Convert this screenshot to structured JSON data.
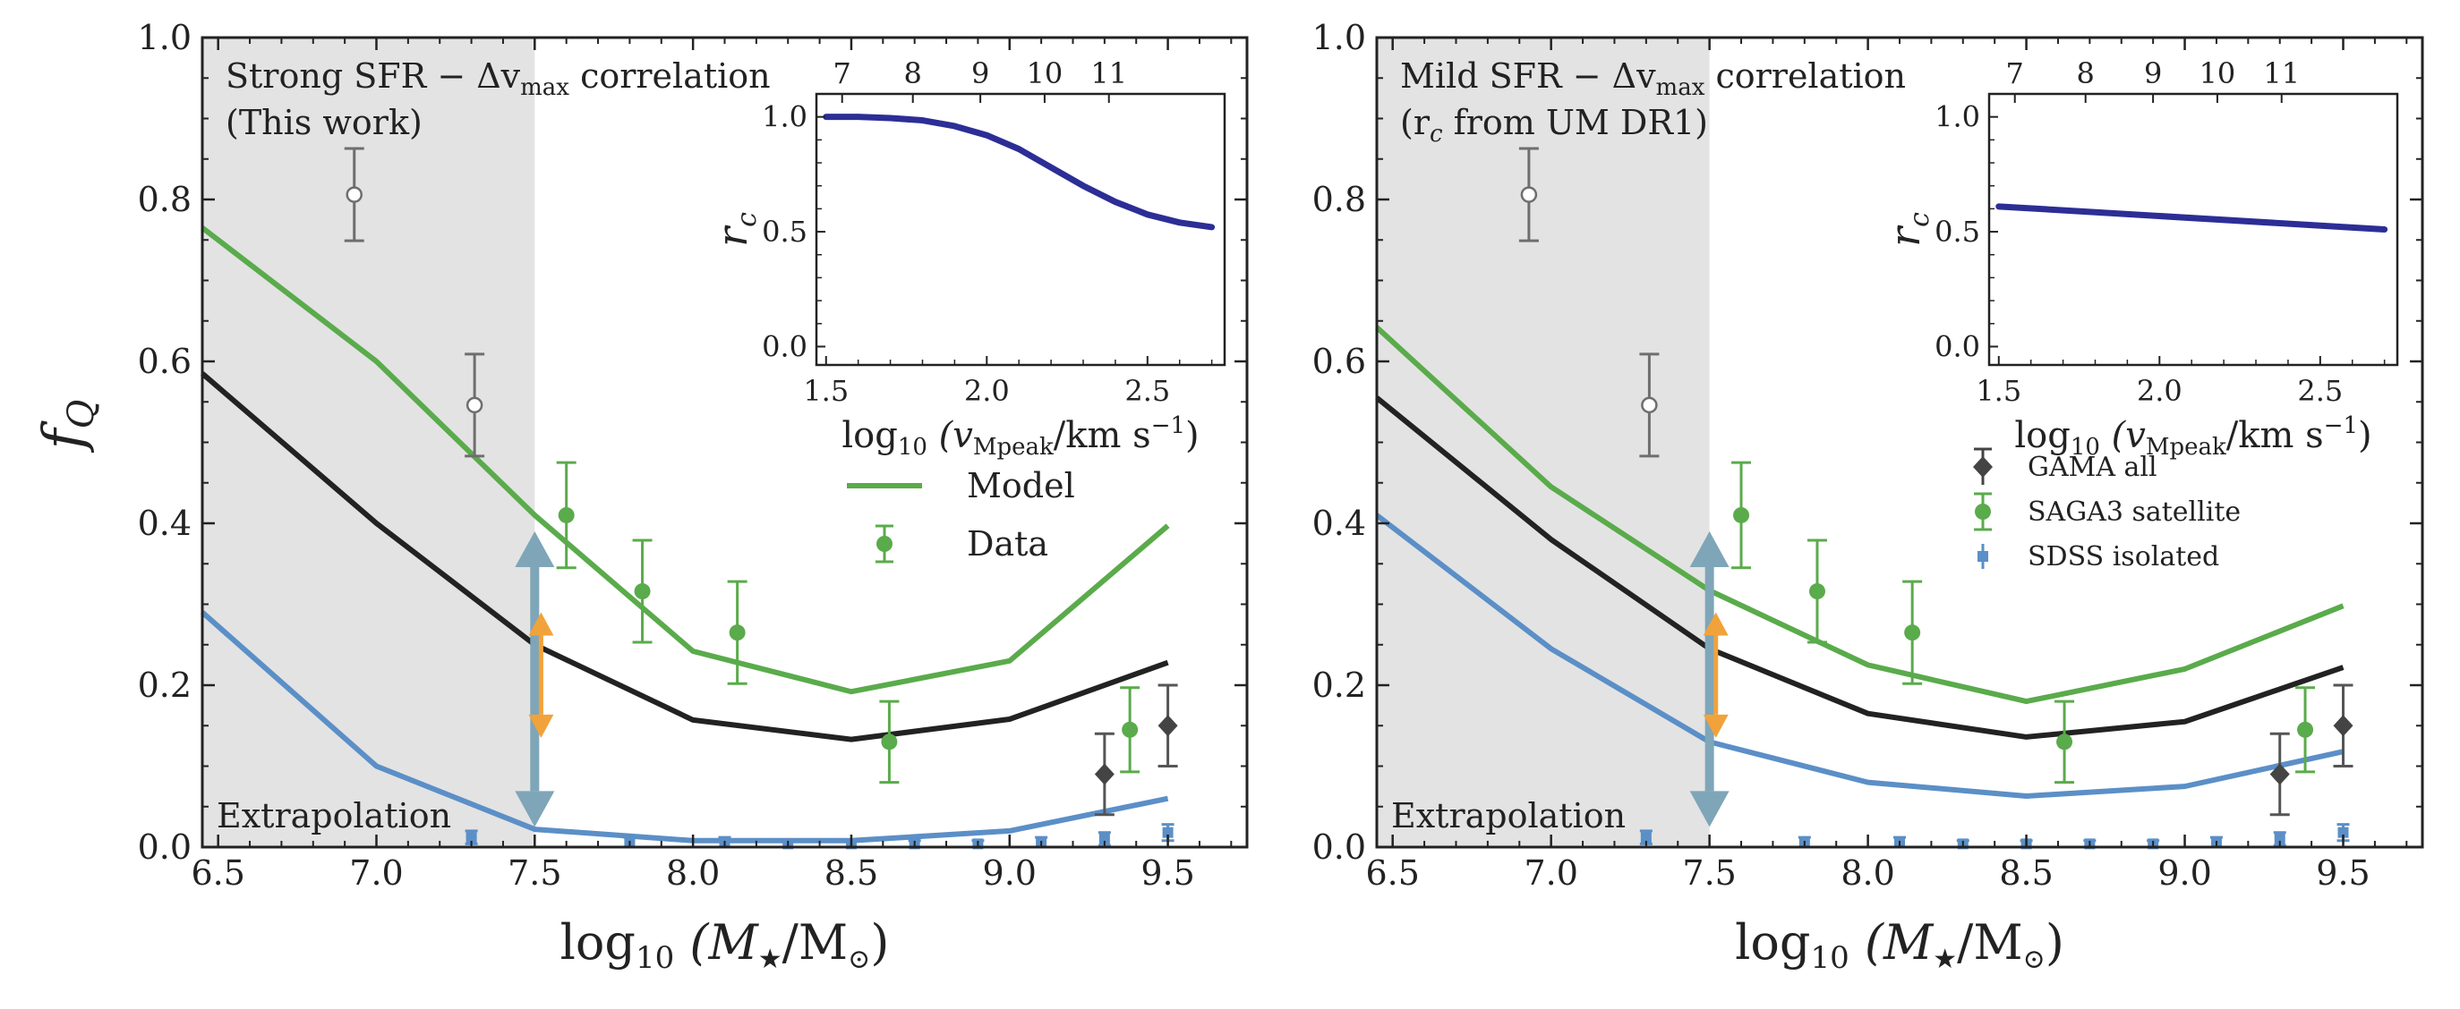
{
  "colors": {
    "green": "#5aab4b",
    "black": "#222222",
    "blue": "#5b8fc7",
    "gray": "#6e6e6e",
    "shade": "#e3e3e3",
    "inset_line": "#2c2e96",
    "teal_arrow": "#7ea6b8",
    "orange_arrow": "#f2a23a"
  },
  "chart_data": [
    {
      "type": "line",
      "panel": "left",
      "title": "",
      "annotation_line1": "Strong SFR − Δv",
      "annotation_sub": "max",
      "annotation_tail": " correlation",
      "annotation_line2": "(This work)",
      "shaded_label": "Extrapolation",
      "shaded_x_range": [
        6.45,
        7.5
      ],
      "xlabel_prefix": "log",
      "xlabel_sub": "10",
      "xlabel_body": " (M",
      "xlabel_star": "★",
      "xlabel_mid": "/M",
      "xlabel_sun": "⊙",
      "xlabel_end": ")",
      "ylabel": "f",
      "ylabel_sub": "Q",
      "xlim": [
        6.45,
        9.75
      ],
      "ylim": [
        0.0,
        1.0
      ],
      "xticks": [
        "6.5",
        "7.0",
        "7.5",
        "8.0",
        "8.5",
        "9.0",
        "9.5"
      ],
      "yticks": [
        "0.0",
        "0.2",
        "0.4",
        "0.6",
        "0.8",
        "1.0"
      ],
      "x": [
        6.45,
        7.0,
        7.5,
        8.0,
        8.5,
        9.0,
        9.5
      ],
      "series": [
        {
          "name": "Model",
          "color_key": "green",
          "values": [
            0.765,
            0.6,
            0.41,
            0.242,
            0.192,
            0.23,
            0.397
          ]
        },
        {
          "color_key": "black",
          "values": [
            0.585,
            0.4,
            0.25,
            0.157,
            0.133,
            0.158,
            0.228
          ]
        },
        {
          "color_key": "blue",
          "values": [
            0.29,
            0.1,
            0.022,
            0.008,
            0.008,
            0.02,
            0.06
          ]
        }
      ],
      "points": [
        {
          "set": "saga_out",
          "x": 6.93,
          "y": 0.806,
          "yerr": [
            0.057,
            0.057
          ]
        },
        {
          "set": "saga_out",
          "x": 7.31,
          "y": 0.546,
          "yerr": [
            0.063,
            0.063
          ]
        },
        {
          "set": "saga",
          "x": 7.6,
          "y": 0.41,
          "yerr": [
            0.065,
            0.065
          ]
        },
        {
          "set": "saga",
          "x": 7.84,
          "y": 0.316,
          "yerr": [
            0.063,
            0.063
          ]
        },
        {
          "set": "saga",
          "x": 8.14,
          "y": 0.265,
          "yerr": [
            0.063,
            0.063
          ]
        },
        {
          "set": "saga",
          "x": 8.62,
          "y": 0.13,
          "yerr": [
            0.05,
            0.05
          ]
        },
        {
          "set": "saga",
          "x": 9.38,
          "y": 0.145,
          "yerr": [
            0.052,
            0.052
          ]
        },
        {
          "set": "gama",
          "x": 9.3,
          "y": 0.09,
          "yerr": [
            0.05,
            0.05
          ]
        },
        {
          "set": "gama",
          "x": 9.5,
          "y": 0.15,
          "yerr": [
            0.05,
            0.05
          ]
        },
        {
          "set": "sdss",
          "x": 7.3,
          "y": 0.012,
          "yerr": [
            0.008,
            0.008
          ]
        },
        {
          "set": "sdss",
          "x": 7.8,
          "y": 0.006,
          "yerr": [
            0.006,
            0.006
          ]
        },
        {
          "set": "sdss",
          "x": 8.1,
          "y": 0.006,
          "yerr": [
            0.006,
            0.006
          ]
        },
        {
          "set": "sdss",
          "x": 8.3,
          "y": 0.004,
          "yerr": [
            0.004,
            0.004
          ]
        },
        {
          "set": "sdss",
          "x": 8.5,
          "y": 0.004,
          "yerr": [
            0.004,
            0.004
          ]
        },
        {
          "set": "sdss",
          "x": 8.7,
          "y": 0.004,
          "yerr": [
            0.004,
            0.004
          ]
        },
        {
          "set": "sdss",
          "x": 8.9,
          "y": 0.004,
          "yerr": [
            0.004,
            0.004
          ]
        },
        {
          "set": "sdss",
          "x": 9.1,
          "y": 0.006,
          "yerr": [
            0.006,
            0.006
          ]
        },
        {
          "set": "sdss",
          "x": 9.3,
          "y": 0.01,
          "yerr": [
            0.008,
            0.008
          ]
        },
        {
          "set": "sdss",
          "x": 9.5,
          "y": 0.018,
          "yerr": [
            0.01,
            0.01
          ]
        }
      ],
      "arrows": [
        {
          "color_key": "teal_arrow",
          "x": 7.5,
          "y_from": 0.025,
          "y_to": 0.39
        },
        {
          "color_key": "orange_arrow",
          "x": 7.52,
          "y_from": 0.135,
          "y_to": 0.29
        }
      ],
      "legend": {
        "placement": "center-right",
        "entries": [
          {
            "label": "Model",
            "kind": "line",
            "color_key": "green"
          },
          {
            "label": "Data",
            "kind": "errpoint",
            "color_key": "green"
          }
        ]
      },
      "inset": {
        "xlabel_prefix": "log",
        "xlabel_sub": "10",
        "xlabel_body": " (v",
        "xlabel_vsub": "Mpeak",
        "xlabel_unit": "/km s",
        "xlabel_exp": "−1",
        "xlabel_end": ")",
        "ylabel": "r",
        "ylabel_sub": "c",
        "xlim": [
          1.47,
          2.74
        ],
        "ylim": [
          -0.08,
          1.1
        ],
        "xticks": [
          "1.5",
          "2.0",
          "2.5"
        ],
        "yticks": [
          "0.0",
          "0.5",
          "1.0"
        ],
        "top_ticks": [
          "7",
          "8",
          "9",
          "10",
          "11"
        ],
        "top_tick_positions": [
          1.55,
          1.77,
          1.98,
          2.18,
          2.38
        ],
        "curve": {
          "x": [
            1.5,
            1.6,
            1.7,
            1.8,
            1.9,
            2.0,
            2.1,
            2.2,
            2.3,
            2.4,
            2.5,
            2.6,
            2.7
          ],
          "y": [
            1.0,
            1.0,
            0.995,
            0.985,
            0.96,
            0.92,
            0.86,
            0.78,
            0.7,
            0.63,
            0.575,
            0.54,
            0.52
          ]
        }
      }
    },
    {
      "type": "line",
      "panel": "right",
      "title": "",
      "annotation_line1": "Mild SFR − Δv",
      "annotation_sub": "max",
      "annotation_tail": " correlation",
      "annotation_line2_pre": "(r",
      "annotation_line2_sub": "c",
      "annotation_line2_post": " from UM DR1)",
      "shaded_label": "Extrapolation",
      "shaded_x_range": [
        6.45,
        7.5
      ],
      "xlabel_prefix": "log",
      "xlabel_sub": "10",
      "xlabel_body": " (M",
      "xlabel_star": "★",
      "xlabel_mid": "/M",
      "xlabel_sun": "⊙",
      "xlabel_end": ")",
      "xlim": [
        6.45,
        9.75
      ],
      "ylim": [
        0.0,
        1.0
      ],
      "xticks": [
        "6.5",
        "7.0",
        "7.5",
        "8.0",
        "8.5",
        "9.0",
        "9.5"
      ],
      "yticks": [
        "0.0",
        "0.2",
        "0.4",
        "0.6",
        "0.8",
        "1.0"
      ],
      "x": [
        6.45,
        7.0,
        7.5,
        8.0,
        8.5,
        9.0,
        9.5
      ],
      "series": [
        {
          "color_key": "green",
          "values": [
            0.642,
            0.445,
            0.317,
            0.225,
            0.18,
            0.22,
            0.298
          ]
        },
        {
          "color_key": "black",
          "values": [
            0.555,
            0.38,
            0.245,
            0.165,
            0.136,
            0.155,
            0.222
          ]
        },
        {
          "color_key": "blue",
          "values": [
            0.41,
            0.245,
            0.13,
            0.08,
            0.063,
            0.075,
            0.118
          ]
        }
      ],
      "points": [
        {
          "set": "saga_out",
          "x": 6.93,
          "y": 0.806,
          "yerr": [
            0.057,
            0.057
          ]
        },
        {
          "set": "saga_out",
          "x": 7.31,
          "y": 0.546,
          "yerr": [
            0.063,
            0.063
          ]
        },
        {
          "set": "saga",
          "x": 7.6,
          "y": 0.41,
          "yerr": [
            0.065,
            0.065
          ]
        },
        {
          "set": "saga",
          "x": 7.84,
          "y": 0.316,
          "yerr": [
            0.063,
            0.063
          ]
        },
        {
          "set": "saga",
          "x": 8.14,
          "y": 0.265,
          "yerr": [
            0.063,
            0.063
          ]
        },
        {
          "set": "saga",
          "x": 8.62,
          "y": 0.13,
          "yerr": [
            0.05,
            0.05
          ]
        },
        {
          "set": "saga",
          "x": 9.38,
          "y": 0.145,
          "yerr": [
            0.052,
            0.052
          ]
        },
        {
          "set": "gama",
          "x": 9.3,
          "y": 0.09,
          "yerr": [
            0.05,
            0.05
          ]
        },
        {
          "set": "gama",
          "x": 9.5,
          "y": 0.15,
          "yerr": [
            0.05,
            0.05
          ]
        },
        {
          "set": "sdss",
          "x": 7.3,
          "y": 0.012,
          "yerr": [
            0.008,
            0.008
          ]
        },
        {
          "set": "sdss",
          "x": 7.8,
          "y": 0.006,
          "yerr": [
            0.006,
            0.006
          ]
        },
        {
          "set": "sdss",
          "x": 8.1,
          "y": 0.006,
          "yerr": [
            0.006,
            0.006
          ]
        },
        {
          "set": "sdss",
          "x": 8.3,
          "y": 0.004,
          "yerr": [
            0.004,
            0.004
          ]
        },
        {
          "set": "sdss",
          "x": 8.5,
          "y": 0.004,
          "yerr": [
            0.004,
            0.004
          ]
        },
        {
          "set": "sdss",
          "x": 8.7,
          "y": 0.004,
          "yerr": [
            0.004,
            0.004
          ]
        },
        {
          "set": "sdss",
          "x": 8.9,
          "y": 0.004,
          "yerr": [
            0.004,
            0.004
          ]
        },
        {
          "set": "sdss",
          "x": 9.1,
          "y": 0.006,
          "yerr": [
            0.006,
            0.006
          ]
        },
        {
          "set": "sdss",
          "x": 9.3,
          "y": 0.01,
          "yerr": [
            0.008,
            0.008
          ]
        },
        {
          "set": "sdss",
          "x": 9.5,
          "y": 0.018,
          "yerr": [
            0.01,
            0.01
          ]
        }
      ],
      "arrows": [
        {
          "color_key": "teal_arrow",
          "x": 7.5,
          "y_from": 0.025,
          "y_to": 0.39
        },
        {
          "color_key": "orange_arrow",
          "x": 7.52,
          "y_from": 0.135,
          "y_to": 0.29
        }
      ],
      "legend": {
        "placement": "center-right",
        "entries": [
          {
            "label": "GAMA all",
            "kind": "diamond",
            "color_key": "black"
          },
          {
            "label": "SAGA3 satellite",
            "kind": "errpoint",
            "color_key": "green"
          },
          {
            "label": "SDSS isolated",
            "kind": "square",
            "color_key": "blue"
          }
        ]
      },
      "inset": {
        "xlabel_prefix": "log",
        "xlabel_sub": "10",
        "xlabel_body": " (v",
        "xlabel_vsub": "Mpeak",
        "xlabel_unit": "/km s",
        "xlabel_exp": "−1",
        "xlabel_end": ")",
        "ylabel": "r",
        "ylabel_sub": "c",
        "xlim": [
          1.47,
          2.74
        ],
        "ylim": [
          -0.08,
          1.1
        ],
        "xticks": [
          "1.5",
          "2.0",
          "2.5"
        ],
        "yticks": [
          "0.0",
          "0.5",
          "1.0"
        ],
        "top_ticks": [
          "7",
          "8",
          "9",
          "10",
          "11"
        ],
        "top_tick_positions": [
          1.55,
          1.77,
          1.98,
          2.18,
          2.38
        ],
        "curve": {
          "x": [
            1.5,
            2.7
          ],
          "y": [
            0.61,
            0.51
          ]
        }
      }
    }
  ]
}
